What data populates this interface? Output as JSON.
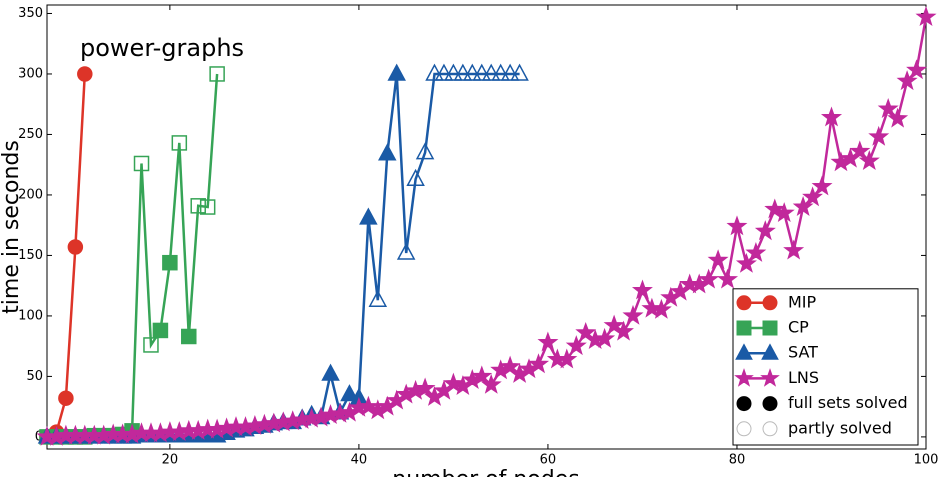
{
  "chart_data": {
    "type": "line",
    "annotation": "power-graphs",
    "x_label": "number of nodes",
    "y_label": "time in seconds",
    "xlim": [
      7,
      100
    ],
    "ylim": [
      -10,
      357
    ],
    "xticks": [
      20,
      40,
      60,
      80,
      100
    ],
    "yticks": [
      0,
      50,
      100,
      150,
      200,
      250,
      300,
      350
    ],
    "grid": false,
    "legend": "lower right",
    "series": [
      {
        "name": "MIP",
        "color": "#dd3428",
        "marker": "circle",
        "x": [
          7,
          8,
          9,
          10,
          11
        ],
        "values": [
          0,
          4,
          32,
          157,
          300
        ],
        "filled": [
          true,
          true,
          true,
          true,
          true
        ]
      },
      {
        "name": "CP",
        "color": "#36a456",
        "marker": "square",
        "x": [
          7,
          8,
          9,
          10,
          11,
          12,
          13,
          14,
          15,
          16,
          17,
          18,
          19,
          20,
          21,
          22,
          23,
          24,
          25
        ],
        "values": [
          0,
          0,
          0,
          0,
          0,
          1,
          1,
          1,
          2,
          5,
          226,
          76,
          88,
          144,
          243,
          83,
          191,
          190,
          300
        ],
        "filled": [
          true,
          true,
          true,
          true,
          true,
          true,
          true,
          true,
          true,
          true,
          false,
          false,
          true,
          true,
          false,
          true,
          false,
          false,
          false
        ]
      },
      {
        "name": "SAT",
        "color": "#1a5aa6",
        "marker": "triangle",
        "x": [
          7,
          8,
          9,
          10,
          11,
          12,
          13,
          14,
          15,
          16,
          17,
          18,
          19,
          20,
          21,
          22,
          23,
          24,
          25,
          26,
          27,
          28,
          29,
          30,
          31,
          32,
          33,
          34,
          35,
          36,
          37,
          38,
          39,
          40,
          41,
          42,
          43,
          44,
          45,
          46,
          47,
          48,
          49,
          50,
          51,
          52,
          53,
          54,
          55,
          56,
          57
        ],
        "values": [
          0,
          0,
          0,
          0,
          0,
          0,
          0,
          0,
          0,
          0,
          1,
          1,
          1,
          1,
          1,
          1,
          1,
          1,
          1,
          3,
          5,
          6,
          8,
          9,
          11,
          12,
          12,
          15,
          18,
          16,
          52,
          20,
          35,
          32,
          181,
          113,
          234,
          300,
          152,
          213,
          235,
          300,
          300,
          300,
          300,
          300,
          300,
          300,
          300,
          300,
          300
        ],
        "filled": [
          true,
          true,
          true,
          true,
          true,
          true,
          true,
          true,
          true,
          true,
          true,
          true,
          true,
          true,
          true,
          true,
          true,
          true,
          true,
          true,
          true,
          true,
          true,
          true,
          true,
          true,
          true,
          true,
          true,
          true,
          true,
          true,
          true,
          true,
          true,
          false,
          true,
          true,
          false,
          false,
          false,
          false,
          false,
          false,
          false,
          false,
          false,
          false,
          false,
          false,
          false
        ]
      },
      {
        "name": "LNS",
        "color": "#c1289b",
        "marker": "star",
        "x": [
          7,
          8,
          9,
          10,
          11,
          12,
          13,
          14,
          15,
          16,
          17,
          18,
          19,
          20,
          21,
          22,
          23,
          24,
          25,
          26,
          27,
          28,
          29,
          30,
          31,
          32,
          33,
          34,
          35,
          36,
          37,
          38,
          39,
          40,
          41,
          42,
          43,
          44,
          45,
          46,
          47,
          48,
          49,
          50,
          51,
          52,
          53,
          54,
          55,
          56,
          57,
          58,
          59,
          60,
          61,
          62,
          63,
          64,
          65,
          66,
          67,
          68,
          69,
          70,
          71,
          72,
          73,
          74,
          75,
          76,
          77,
          78,
          79,
          80,
          81,
          82,
          83,
          84,
          85,
          86,
          87,
          88,
          89,
          90,
          91,
          92,
          93,
          94,
          95,
          96,
          97,
          98,
          99,
          100
        ],
        "values": [
          0,
          0,
          1,
          1,
          1,
          1,
          1,
          2,
          2,
          2,
          3,
          3,
          3,
          4,
          4,
          5,
          5,
          6,
          6,
          7,
          8,
          8,
          9,
          10,
          11,
          12,
          13,
          14,
          15,
          16,
          18,
          19,
          20,
          24,
          25,
          22,
          25,
          30,
          35,
          38,
          40,
          33,
          38,
          44,
          42,
          47,
          50,
          43,
          55,
          58,
          52,
          56,
          60,
          78,
          64,
          64,
          75,
          86,
          80,
          81,
          92,
          87,
          100,
          121,
          106,
          105,
          115,
          120,
          126,
          126,
          130,
          146,
          130,
          174,
          143,
          152,
          170,
          188,
          185,
          154,
          190,
          198,
          207,
          264,
          227,
          230,
          236,
          228,
          248,
          271,
          263,
          294,
          303,
          347
        ],
        "filled": [
          true,
          true,
          true,
          true,
          true,
          true,
          true,
          true,
          true,
          true,
          true,
          true,
          true,
          true,
          true,
          true,
          true,
          true,
          true,
          true,
          true,
          true,
          true,
          true,
          true,
          true,
          true,
          true,
          true,
          true,
          true,
          true,
          true,
          true,
          true,
          true,
          true,
          true,
          true,
          true,
          true,
          true,
          true,
          true,
          true,
          true,
          true,
          true,
          true,
          true,
          true,
          true,
          true,
          true,
          true,
          true,
          true,
          true,
          true,
          true,
          true,
          true,
          true,
          true,
          true,
          true,
          true,
          true,
          true,
          true,
          true,
          true,
          true,
          true,
          true,
          true,
          true,
          true,
          true,
          true,
          true,
          true,
          true,
          true,
          true,
          true,
          true,
          true,
          true,
          true,
          true,
          true,
          true,
          true
        ]
      }
    ],
    "marker_legend": [
      {
        "label": "full sets solved",
        "filled": true
      },
      {
        "label": "partly solved",
        "filled": false
      }
    ]
  }
}
